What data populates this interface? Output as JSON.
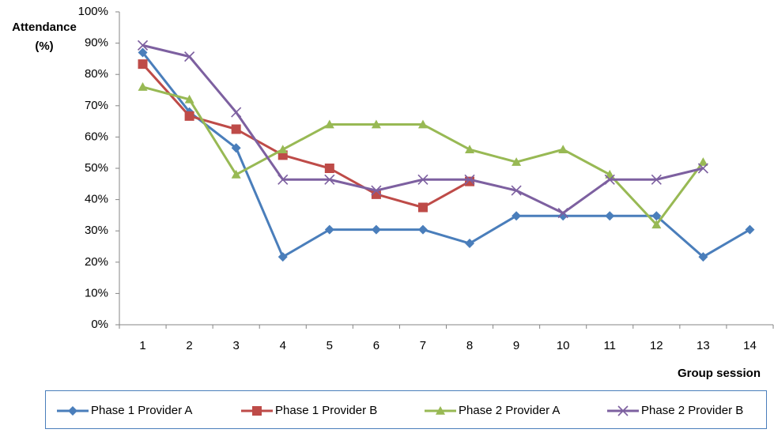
{
  "chart_data": {
    "type": "line",
    "y_label": [
      "Attendance",
      "(%)"
    ],
    "x_label": "Group session",
    "categories": [
      "1",
      "2",
      "3",
      "4",
      "5",
      "6",
      "7",
      "8",
      "9",
      "10",
      "11",
      "12",
      "13",
      "14"
    ],
    "series": [
      {
        "name": "Phase 1 Provider A",
        "color": "#4a7ebb",
        "marker": "diamond",
        "values": [
          87,
          68,
          56.5,
          21.7,
          30.4,
          30.4,
          30.4,
          26,
          34.8,
          34.8,
          34.8,
          34.8,
          21.7,
          30.4
        ]
      },
      {
        "name": "Phase 1 Provider B",
        "color": "#be4b48",
        "marker": "square",
        "values": [
          83.3,
          66.7,
          62.5,
          54.2,
          50,
          41.7,
          37.5,
          45.8,
          null,
          null,
          null,
          null,
          null,
          null
        ]
      },
      {
        "name": "Phase 2 Provider A",
        "color": "#98b954",
        "marker": "triangle",
        "values": [
          76,
          72,
          48,
          56,
          64,
          64,
          64,
          56,
          52,
          56,
          48,
          32,
          52,
          null
        ]
      },
      {
        "name": "Phase 2 Provider B",
        "color": "#7d60a0",
        "marker": "x",
        "values": [
          89.3,
          85.7,
          67.9,
          46.4,
          46.4,
          42.9,
          46.4,
          46.4,
          42.9,
          35.7,
          46.4,
          46.4,
          50,
          null
        ]
      }
    ],
    "ylim": [
      0,
      100
    ],
    "yticks": [
      {
        "value": 0,
        "label": "0%"
      },
      {
        "value": 10,
        "label": "10%"
      },
      {
        "value": 20,
        "label": "20%"
      },
      {
        "value": 30,
        "label": "30%"
      },
      {
        "value": 40,
        "label": "40%"
      },
      {
        "value": 50,
        "label": "50%"
      },
      {
        "value": 60,
        "label": "60%"
      },
      {
        "value": 70,
        "label": "70%"
      },
      {
        "value": 80,
        "label": "80%"
      },
      {
        "value": 90,
        "label": "90%"
      },
      {
        "value": 100,
        "label": "100%"
      }
    ],
    "legend": "bottom"
  }
}
